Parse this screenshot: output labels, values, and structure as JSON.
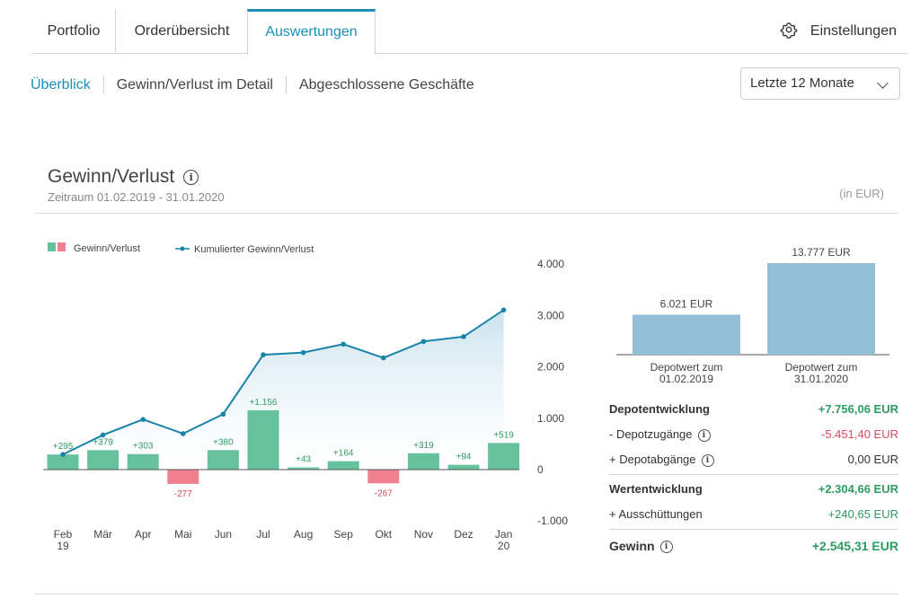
{
  "tabs": [
    {
      "label": "Portfolio"
    },
    {
      "label": "Orderübersicht"
    },
    {
      "label": "Auswertungen"
    }
  ],
  "settings_label": "Einstellungen",
  "subnav": [
    {
      "label": "Überblick"
    },
    {
      "label": "Gewinn/Verlust im Detail"
    },
    {
      "label": "Abgeschlossene Geschäfte"
    }
  ],
  "period_select": {
    "value": "Letzte 12 Monate"
  },
  "card": {
    "title": "Gewinn/Verlust",
    "period": "Zeitraum 01.02.2019 - 31.01.2020",
    "currency": "(in EUR)"
  },
  "colors": {
    "positive": "#66c29c",
    "negative": "#f0808d",
    "line": "#1a84a8",
    "depot_bar": "#94bfd6",
    "accent": "#1a8fb3"
  },
  "chart_data": [
    {
      "type": "bar+line",
      "legend": [
        "Gewinn/Verlust",
        "Kumulierter Gewinn/Verlust"
      ],
      "legend_position": "top-left",
      "categories": [
        "Feb\n19",
        "Mär",
        "Apr",
        "Mai",
        "Jun",
        "Jul",
        "Aug",
        "Sep",
        "Okt",
        "Nov",
        "Dez",
        "Jan\n20"
      ],
      "series": [
        {
          "name": "Gewinn/Verlust",
          "type": "bar",
          "values": [
            295,
            379,
            303,
            -277,
            380,
            1156,
            43,
            164,
            -267,
            319,
            94,
            519
          ],
          "labels": [
            "+295",
            "+379",
            "+303",
            "-277",
            "+380",
            "+1.156",
            "+43",
            "+164",
            "-267",
            "+319",
            "+94",
            "+519"
          ]
        },
        {
          "name": "Kumulierter Gewinn/Verlust",
          "type": "line",
          "values": [
            295,
            674,
            977,
            700,
            1080,
            2236,
            2279,
            2443,
            2176,
            2495,
            2589,
            3108
          ]
        }
      ],
      "y_ticks": [
        "4.000",
        "3.000",
        "2.000",
        "1.000",
        "0",
        "-1.000"
      ],
      "y_tick_values": [
        4000,
        3000,
        2000,
        1000,
        0,
        -1000
      ],
      "ylim": [
        -1000,
        4000
      ]
    },
    {
      "type": "bar",
      "categories": [
        "Depotwert zum\n01.02.2019",
        "Depotwert zum\n31.01.2020"
      ],
      "values": [
        6021,
        13777
      ],
      "labels": [
        "6.021 EUR",
        "13.777 EUR"
      ]
    }
  ],
  "details": [
    {
      "label": "Depotentwicklung",
      "value": "+7.756,06 EUR",
      "bold": true,
      "tone": "pos",
      "info": false
    },
    {
      "label": "- Depotzugänge",
      "value": "-5.451,40 EUR",
      "bold": false,
      "tone": "neg",
      "info": true
    },
    {
      "label": "+ Depotabgänge",
      "value": "0,00 EUR",
      "bold": false,
      "tone": "",
      "info": true
    },
    {
      "label": "Wertentwicklung",
      "value": "+2.304,66 EUR",
      "bold": true,
      "tone": "pos",
      "info": false
    },
    {
      "label": "+ Ausschüttungen",
      "value": "+240,65 EUR",
      "bold": false,
      "tone": "pos",
      "info": false
    },
    {
      "label": "Gewinn",
      "value": "+2.545,31 EUR",
      "bold": true,
      "tone": "pos",
      "info": true
    }
  ]
}
